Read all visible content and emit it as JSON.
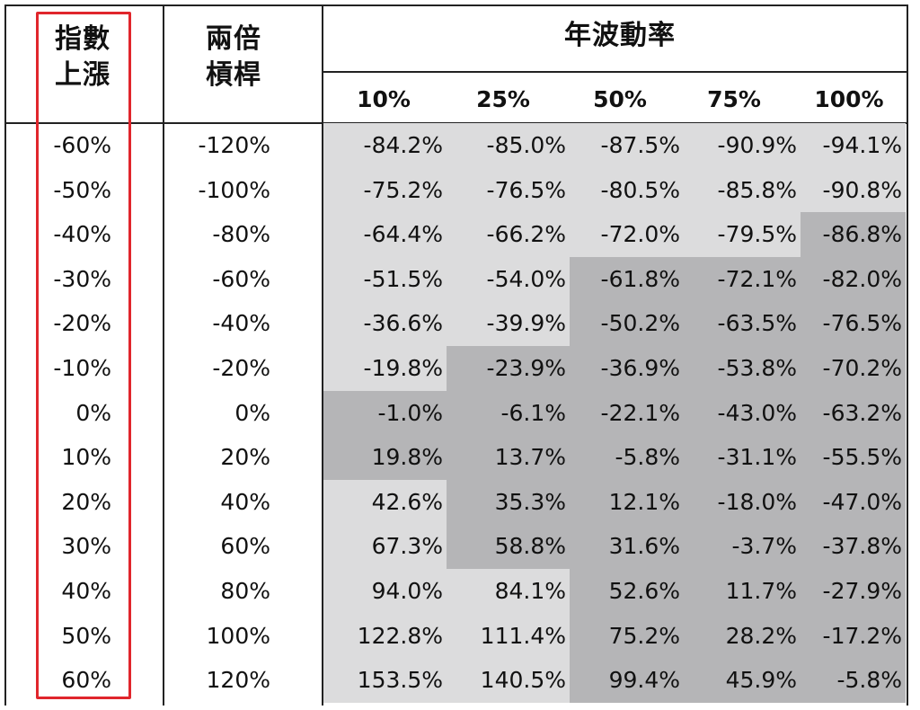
{
  "headers": {
    "index_rise": [
      "指數",
      "上漲"
    ],
    "double_leverage": [
      "兩倍",
      "槓桿"
    ],
    "annual_volatility": "年波動率",
    "volatility_levels": [
      "10%",
      "25%",
      "50%",
      "75%",
      "100%"
    ]
  },
  "rows": [
    {
      "index": "-60%",
      "lev": "-120%",
      "vals": [
        "-84.2%",
        "-85.0%",
        "-87.5%",
        "-90.9%",
        "-94.1%"
      ],
      "shade": [
        "l",
        "l",
        "l",
        "l",
        "l"
      ]
    },
    {
      "index": "-50%",
      "lev": "-100%",
      "vals": [
        "-75.2%",
        "-76.5%",
        "-80.5%",
        "-85.8%",
        "-90.8%"
      ],
      "shade": [
        "l",
        "l",
        "l",
        "l",
        "l"
      ]
    },
    {
      "index": "-40%",
      "lev": "-80%",
      "vals": [
        "-64.4%",
        "-66.2%",
        "-72.0%",
        "-79.5%",
        "-86.8%"
      ],
      "shade": [
        "l",
        "l",
        "l",
        "l",
        "d"
      ]
    },
    {
      "index": "-30%",
      "lev": "-60%",
      "vals": [
        "-51.5%",
        "-54.0%",
        "-61.8%",
        "-72.1%",
        "-82.0%"
      ],
      "shade": [
        "l",
        "l",
        "d",
        "d",
        "d"
      ]
    },
    {
      "index": "-20%",
      "lev": "-40%",
      "vals": [
        "-36.6%",
        "-39.9%",
        "-50.2%",
        "-63.5%",
        "-76.5%"
      ],
      "shade": [
        "l",
        "l",
        "d",
        "d",
        "d"
      ]
    },
    {
      "index": "-10%",
      "lev": "-20%",
      "vals": [
        "-19.8%",
        "-23.9%",
        "-36.9%",
        "-53.8%",
        "-70.2%"
      ],
      "shade": [
        "l",
        "d",
        "d",
        "d",
        "d"
      ]
    },
    {
      "index": "0%",
      "lev": "0%",
      "vals": [
        "-1.0%",
        "-6.1%",
        "-22.1%",
        "-43.0%",
        "-63.2%"
      ],
      "shade": [
        "d",
        "d",
        "d",
        "d",
        "d"
      ]
    },
    {
      "index": "10%",
      "lev": "20%",
      "vals": [
        "19.8%",
        "13.7%",
        "-5.8%",
        "-31.1%",
        "-55.5%"
      ],
      "shade": [
        "d",
        "d",
        "d",
        "d",
        "d"
      ]
    },
    {
      "index": "20%",
      "lev": "40%",
      "vals": [
        "42.6%",
        "35.3%",
        "12.1%",
        "-18.0%",
        "-47.0%"
      ],
      "shade": [
        "l",
        "d",
        "d",
        "d",
        "d"
      ]
    },
    {
      "index": "30%",
      "lev": "60%",
      "vals": [
        "67.3%",
        "58.8%",
        "31.6%",
        "-3.7%",
        "-37.8%"
      ],
      "shade": [
        "l",
        "d",
        "d",
        "d",
        "d"
      ]
    },
    {
      "index": "40%",
      "lev": "80%",
      "vals": [
        "94.0%",
        "84.1%",
        "52.6%",
        "11.7%",
        "-27.9%"
      ],
      "shade": [
        "l",
        "l",
        "d",
        "d",
        "d"
      ]
    },
    {
      "index": "50%",
      "lev": "100%",
      "vals": [
        "122.8%",
        "111.4%",
        "75.2%",
        "28.2%",
        "-17.2%"
      ],
      "shade": [
        "l",
        "l",
        "d",
        "d",
        "d"
      ]
    },
    {
      "index": "60%",
      "lev": "120%",
      "vals": [
        "153.5%",
        "140.5%",
        "99.4%",
        "45.9%",
        "-5.8%"
      ],
      "shade": [
        "l",
        "l",
        "d",
        "d",
        "d"
      ]
    }
  ],
  "colors": {
    "light_cell": "#dcdcdd",
    "dark_cell": "#b5b5b7",
    "highlight_border": "#e0262c"
  }
}
